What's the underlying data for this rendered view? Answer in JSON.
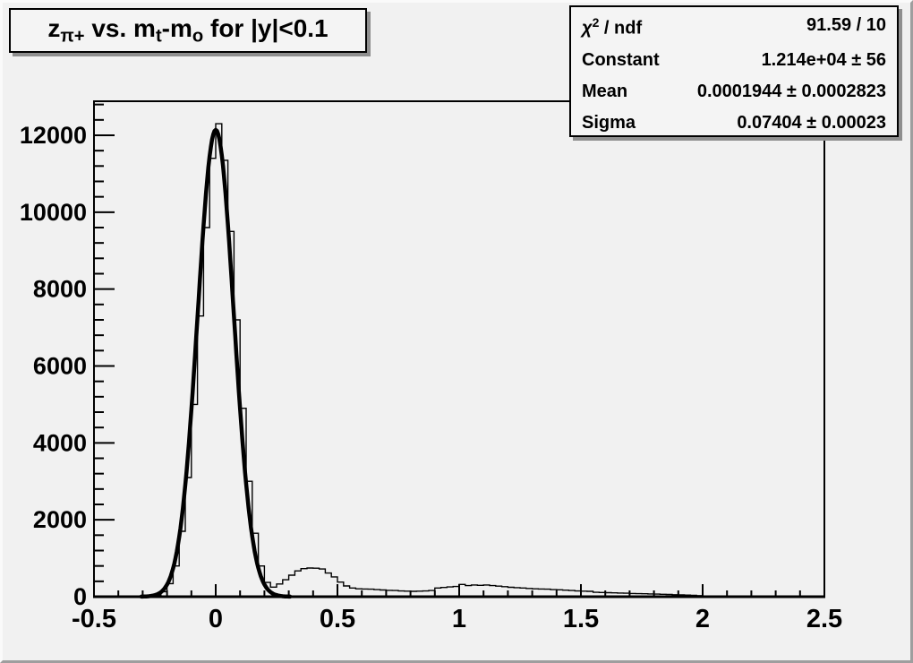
{
  "window": {
    "background": "#f1f1f1",
    "pave_fill": "#f4f4f4",
    "shadow_color": "#8f8f8f",
    "line_color": "#000000"
  },
  "title_box": {
    "z": "z",
    "z_sub": "π+",
    "mid1": " vs. m",
    "m1_sub": "t",
    "mid2": "-m",
    "m2_sub": "o",
    "tail": " for |y|<0.1"
  },
  "stats_box": {
    "rows": [
      {
        "label_chi": "χ",
        "label_sup": "2",
        "label_rest": " / ndf",
        "value": "91.59 / 10"
      },
      {
        "label": "Constant",
        "value": "1.214e+04 ± 56"
      },
      {
        "label": "Mean",
        "value": "0.0001944 ± 0.0002823"
      },
      {
        "label": "Sigma",
        "value": "0.07404 ± 0.00023"
      }
    ]
  },
  "chart_data": {
    "type": "histogram",
    "title": "z_{π+} vs. m_t-m_o for |y|<0.1",
    "legend_position": "none",
    "grid": false,
    "x": {
      "min": -0.5,
      "max": 2.5,
      "major_ticks": [
        -0.5,
        0,
        0.5,
        1,
        1.5,
        2,
        2.5
      ],
      "tick_labels": [
        "-0.5",
        "0",
        "0.5",
        "1",
        "1.5",
        "2",
        "2.5"
      ],
      "minor_step": 0.1
    },
    "y": {
      "min": 0,
      "max": 12885,
      "major_ticks": [
        0,
        2000,
        4000,
        6000,
        8000,
        10000,
        12000
      ],
      "tick_labels": [
        "0",
        "2000",
        "4000",
        "6000",
        "8000",
        "10000",
        "12000"
      ],
      "minor_step": 400
    },
    "bins": {
      "x_start": -0.5,
      "bin_width": 0.025,
      "counts": [
        0,
        0,
        0,
        0,
        0,
        0,
        0,
        0,
        0,
        10,
        45,
        130,
        340,
        800,
        1700,
        3100,
        5000,
        7300,
        9600,
        11400,
        12300,
        11350,
        9500,
        7200,
        4900,
        3000,
        1650,
        800,
        370,
        250,
        330,
        440,
        560,
        670,
        730,
        745,
        740,
        720,
        615,
        515,
        380,
        280,
        225,
        205,
        200,
        195,
        185,
        175,
        165,
        160,
        150,
        145,
        140,
        145,
        150,
        160,
        225,
        240,
        255,
        265,
        320,
        290,
        305,
        295,
        305,
        290,
        275,
        260,
        245,
        235,
        225,
        215,
        205,
        200,
        195,
        185,
        180,
        170,
        160,
        150,
        145,
        140,
        115,
        110,
        105,
        100,
        95,
        90,
        85,
        80,
        78,
        72,
        68,
        62,
        58,
        52,
        48,
        42,
        35,
        28,
        18,
        8,
        0,
        0,
        0,
        0,
        0,
        0,
        0,
        0,
        0,
        0,
        0,
        0,
        0,
        0,
        0,
        0,
        0,
        0
      ]
    },
    "fit": {
      "type": "gaussian",
      "chi2": 91.59,
      "ndf": 10,
      "constant": 12140,
      "constant_err": 56,
      "mean": 0.0001944,
      "mean_err": 0.0002823,
      "sigma": 0.07404,
      "sigma_err": 0.00023,
      "draw_range": [
        -0.305,
        0.305
      ]
    }
  }
}
